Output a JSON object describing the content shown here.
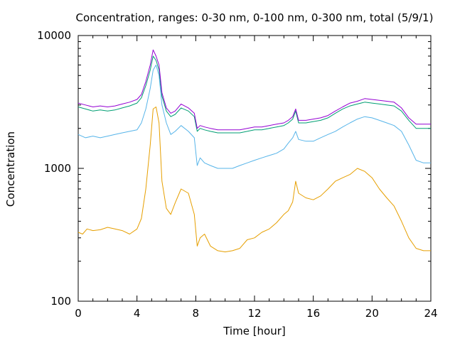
{
  "chart_data": {
    "type": "line",
    "title": "Concentration, ranges: 0-30 nm, 0-100 nm, 0-300 nm, total (5/9/1)",
    "xlabel": "Time [hour]",
    "ylabel": "Concentration",
    "xlim": [
      0,
      24
    ],
    "ylim": [
      100,
      10000
    ],
    "yscale": "log",
    "x_ticks": [
      0,
      4,
      8,
      12,
      16,
      20,
      24
    ],
    "y_ticks": [
      100,
      1000,
      10000
    ],
    "grid": false,
    "legend": "none",
    "series": [
      {
        "color": "#e69f00",
        "x": [
          0,
          0.3,
          0.6,
          1,
          1.5,
          2,
          2.5,
          3,
          3.5,
          4,
          4.3,
          4.6,
          4.9,
          5.1,
          5.3,
          5.5,
          5.7,
          6,
          6.3,
          6.6,
          7,
          7.5,
          7.9,
          8.1,
          8.3,
          8.6,
          9,
          9.5,
          10,
          10.5,
          11,
          11.5,
          12,
          12.5,
          13,
          13.5,
          14,
          14.3,
          14.6,
          14.8,
          15,
          15.5,
          16,
          16.5,
          17,
          17.5,
          18,
          18.5,
          19,
          19.5,
          20,
          20.5,
          21,
          21.5,
          22,
          22.5,
          23,
          23.5,
          23.8,
          24
        ],
        "y": [
          330,
          320,
          350,
          340,
          345,
          360,
          350,
          340,
          320,
          350,
          420,
          700,
          1500,
          2800,
          2900,
          2200,
          800,
          500,
          450,
          550,
          700,
          650,
          450,
          260,
          300,
          320,
          260,
          240,
          235,
          240,
          250,
          290,
          300,
          330,
          350,
          390,
          450,
          480,
          560,
          800,
          650,
          600,
          580,
          620,
          700,
          800,
          850,
          900,
          1000,
          950,
          850,
          700,
          600,
          520,
          400,
          300,
          250,
          240,
          240,
          240
        ]
      },
      {
        "color": "#56b4e9",
        "x": [
          0,
          0.5,
          1,
          1.5,
          2,
          2.5,
          3,
          3.5,
          4,
          4.3,
          4.6,
          4.9,
          5.1,
          5.3,
          5.5,
          5.7,
          6,
          6.3,
          6.6,
          7,
          7.5,
          7.9,
          8.1,
          8.3,
          8.6,
          9,
          9.5,
          10,
          10.5,
          11,
          11.5,
          12,
          12.5,
          13,
          13.5,
          14,
          14.3,
          14.6,
          14.8,
          15,
          15.5,
          16,
          16.5,
          17,
          17.5,
          18,
          18.5,
          19,
          19.5,
          20,
          20.5,
          21,
          21.5,
          22,
          22.5,
          23,
          23.5,
          24
        ],
        "y": [
          1800,
          1700,
          1750,
          1700,
          1750,
          1800,
          1850,
          1900,
          1950,
          2200,
          2800,
          4000,
          5500,
          6000,
          5000,
          3000,
          2200,
          1800,
          1900,
          2100,
          1900,
          1700,
          1050,
          1200,
          1100,
          1050,
          1000,
          1000,
          1000,
          1050,
          1100,
          1150,
          1200,
          1250,
          1300,
          1400,
          1550,
          1700,
          1900,
          1650,
          1600,
          1600,
          1700,
          1800,
          1900,
          2050,
          2200,
          2350,
          2450,
          2400,
          2300,
          2200,
          2100,
          1900,
          1500,
          1150,
          1100,
          1100
        ]
      },
      {
        "color": "#009e73",
        "x": [
          0,
          0.5,
          1,
          1.5,
          2,
          2.5,
          3,
          3.5,
          4,
          4.3,
          4.6,
          4.9,
          5.1,
          5.3,
          5.5,
          5.7,
          6,
          6.3,
          6.6,
          7,
          7.5,
          7.9,
          8.1,
          8.3,
          8.6,
          9,
          9.5,
          10,
          10.5,
          11,
          11.5,
          12,
          12.5,
          13,
          13.5,
          14,
          14.3,
          14.6,
          14.8,
          15,
          15.5,
          16,
          16.5,
          17,
          17.5,
          18,
          18.5,
          19,
          19.5,
          20,
          20.5,
          21,
          21.5,
          22,
          22.5,
          23,
          23.5,
          24
        ],
        "y": [
          2900,
          2800,
          2700,
          2750,
          2700,
          2750,
          2850,
          2950,
          3100,
          3400,
          4200,
          5500,
          7000,
          6500,
          5500,
          3500,
          2700,
          2450,
          2550,
          2850,
          2700,
          2450,
          1900,
          2000,
          1950,
          1900,
          1850,
          1850,
          1850,
          1850,
          1900,
          1950,
          1950,
          2000,
          2050,
          2100,
          2200,
          2350,
          2700,
          2200,
          2200,
          2250,
          2300,
          2400,
          2600,
          2800,
          2950,
          3050,
          3150,
          3100,
          3050,
          3000,
          2950,
          2700,
          2300,
          2000,
          2000,
          2000
        ]
      },
      {
        "color": "#9400d3",
        "x": [
          0,
          0.5,
          1,
          1.5,
          2,
          2.5,
          3,
          3.5,
          4,
          4.3,
          4.6,
          4.9,
          5.1,
          5.3,
          5.5,
          5.7,
          6,
          6.3,
          6.6,
          7,
          7.5,
          7.9,
          8.1,
          8.3,
          8.6,
          9,
          9.5,
          10,
          10.5,
          11,
          11.5,
          12,
          12.5,
          13,
          13.5,
          14,
          14.3,
          14.6,
          14.8,
          15,
          15.5,
          16,
          16.5,
          17,
          17.5,
          18,
          18.5,
          19,
          19.5,
          20,
          20.5,
          21,
          21.5,
          22,
          22.5,
          23,
          23.5,
          24
        ],
        "y": [
          3100,
          3000,
          2900,
          2950,
          2900,
          2950,
          3050,
          3150,
          3300,
          3600,
          4500,
          6000,
          7800,
          7000,
          6000,
          3700,
          2850,
          2600,
          2700,
          3050,
          2850,
          2600,
          2000,
          2100,
          2050,
          2000,
          1950,
          1950,
          1950,
          1950,
          2000,
          2050,
          2050,
          2100,
          2150,
          2200,
          2300,
          2450,
          2800,
          2300,
          2300,
          2350,
          2400,
          2500,
          2700,
          2900,
          3100,
          3200,
          3350,
          3300,
          3250,
          3200,
          3150,
          2850,
          2400,
          2150,
          2150,
          2150
        ]
      }
    ]
  }
}
